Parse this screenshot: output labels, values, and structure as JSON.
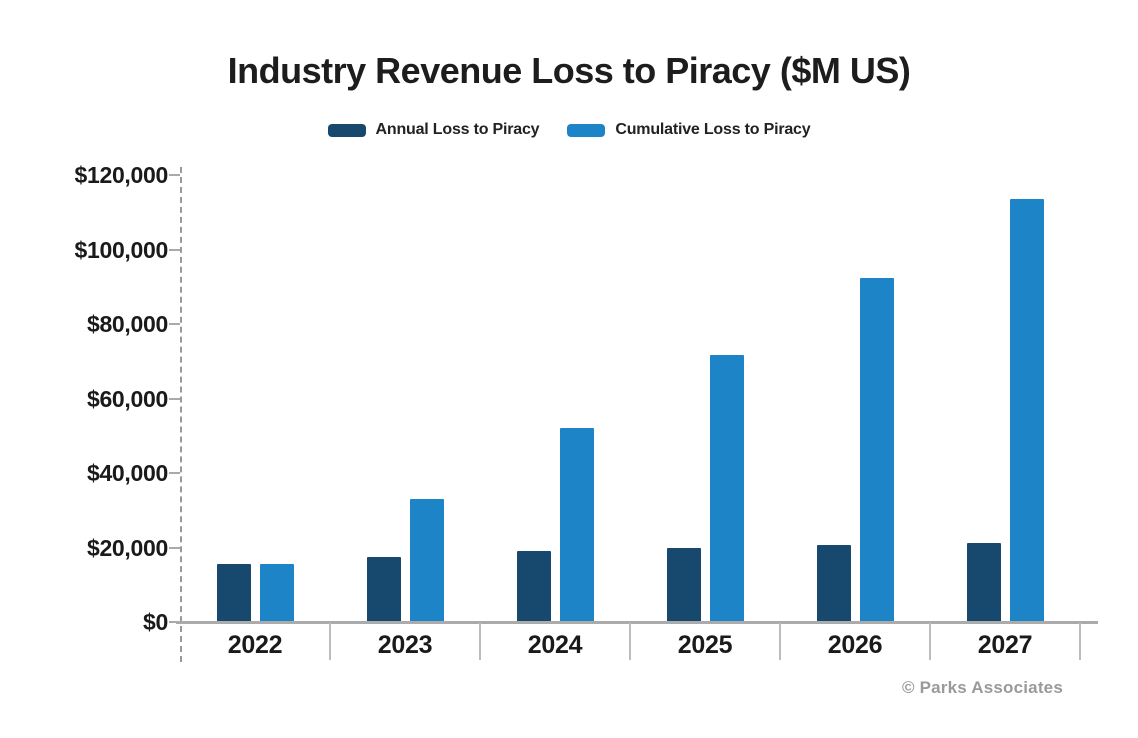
{
  "title": "Industry Revenue Loss to Piracy ($M US)",
  "legend": {
    "items": [
      {
        "label": "Annual Loss to Piracy",
        "color": "#17486D"
      },
      {
        "label": "Cumulative Loss to Piracy",
        "color": "#1E84C8"
      }
    ]
  },
  "footer": {
    "credit": "© Parks Associates"
  },
  "colors": {
    "annual_bar": "#17486D",
    "cumulative_bar": "#1E84C8",
    "axis_line": "#ABABAB",
    "dashed_axis": "#999999",
    "label_text": "#1A1A1A",
    "credit_text": "#9A9A9A"
  },
  "chart_data": {
    "type": "bar",
    "title": "Industry Revenue Loss to Piracy ($M US)",
    "categories": [
      "2022",
      "2023",
      "2024",
      "2025",
      "2026",
      "2027"
    ],
    "series": [
      {
        "name": "Annual Loss to Piracy",
        "color": "#17486D",
        "values": [
          15500,
          17500,
          19000,
          19800,
          20600,
          21300
        ]
      },
      {
        "name": "Cumulative Loss to Piracy",
        "color": "#1E84C8",
        "values": [
          15500,
          33000,
          52000,
          71800,
          92400,
          113700
        ]
      }
    ],
    "xlabel": "",
    "ylabel": "",
    "ylim": [
      0,
      120000
    ],
    "ytick_step": 20000,
    "ytick_labels": [
      "$0",
      "$20,000",
      "$40,000",
      "$60,000",
      "$80,000",
      "$100,000",
      "$120,000"
    ],
    "grid": false,
    "legend_position": "top",
    "source": "© Parks Associates"
  }
}
